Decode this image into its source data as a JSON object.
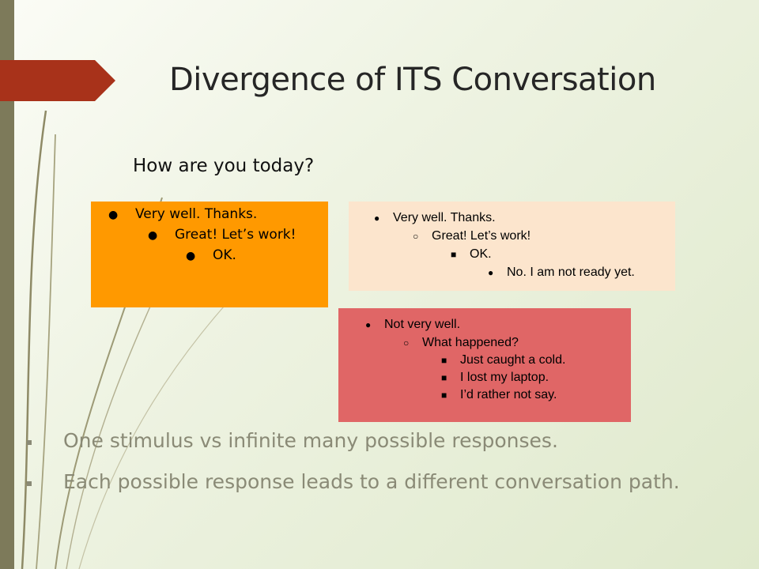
{
  "slide": {
    "title": "Divergence of ITS Conversation",
    "question": "How are you today?",
    "colors": {
      "accent_arrow": "#a8321a",
      "left_bar": "#7d7a5a",
      "box_orange": "#ff9900",
      "box_peach": "#fce5cd",
      "box_red": "#e06666",
      "footer_text": "#8a8a76"
    }
  },
  "boxes": {
    "orange": {
      "items": [
        {
          "bullet": "●",
          "text": "Very well. Thanks."
        },
        {
          "bullet": "●",
          "text": "Great! Let’s work!"
        },
        {
          "bullet": "●",
          "text": "OK."
        }
      ]
    },
    "peach": {
      "items": [
        {
          "bullet": "●",
          "text": "Very well. Thanks."
        },
        {
          "bullet": "○",
          "text": "Great! Let’s work!"
        },
        {
          "bullet": "■",
          "text": "OK."
        },
        {
          "bullet": "●",
          "text": "No. I am not ready yet."
        }
      ]
    },
    "red": {
      "items": [
        {
          "bullet": "●",
          "text": "Not very well."
        },
        {
          "bullet": "○",
          "text": "What happened?"
        },
        {
          "bullet": "■",
          "text": "Just caught a cold."
        },
        {
          "bullet": "■",
          "text": "I lost my laptop."
        },
        {
          "bullet": "■",
          "text": "I’d rather not say."
        }
      ]
    }
  },
  "footer": {
    "items": [
      "One stimulus vs infinite many possible responses.",
      "Each possible response leads to a different conversation path."
    ]
  }
}
